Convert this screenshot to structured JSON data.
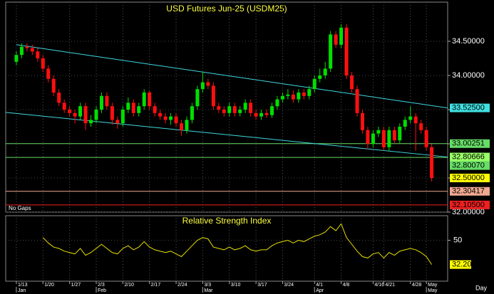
{
  "chart_data": {
    "type": "candlestick",
    "title": "USD Futures Jun-25 (USDM25)",
    "note": "No Gaps",
    "x_unit": "Day",
    "xlim": [
      -2,
      81
    ],
    "ylim": [
      32.0,
      35.0
    ],
    "yticks": [
      {
        "value": 32.0,
        "label": "32.00000"
      },
      {
        "value": 32.5,
        "label": "32.50000"
      },
      {
        "value": 33.0,
        "label": "33.00000"
      },
      {
        "value": 33.5,
        "label": "33.50000"
      },
      {
        "value": 34.0,
        "label": "34.00000"
      },
      {
        "value": 34.5,
        "label": "34.50000"
      }
    ],
    "xticks": [
      {
        "value": 0,
        "label": "1/13"
      },
      {
        "value": 5,
        "label": "1/20"
      },
      {
        "value": 10,
        "label": "1/27"
      },
      {
        "value": 15,
        "label": "2/3"
      },
      {
        "value": 20,
        "label": "2/10"
      },
      {
        "value": 25,
        "label": "2/17"
      },
      {
        "value": 30,
        "label": "2/24"
      },
      {
        "value": 35,
        "label": "3/3"
      },
      {
        "value": 40,
        "label": "3/10"
      },
      {
        "value": 45,
        "label": "3/17"
      },
      {
        "value": 50,
        "label": "3/24"
      },
      {
        "value": 56,
        "label": "4/1"
      },
      {
        "value": 61,
        "label": "4/8"
      },
      {
        "value": 67,
        "label": "4/16"
      },
      {
        "value": 69,
        "label": "4/21"
      },
      {
        "value": 74,
        "label": "4/28"
      },
      {
        "value": 77,
        "label": "May"
      }
    ],
    "months": [
      {
        "value": 0,
        "label": "Jan"
      },
      {
        "value": 15,
        "label": "Feb"
      },
      {
        "value": 35,
        "label": "Mar"
      },
      {
        "value": 56,
        "label": "Apr"
      },
      {
        "value": 77,
        "label": "May"
      }
    ],
    "grid": true,
    "up_color": "#00e000",
    "down_color": "#ff1010",
    "open": [
      34.2,
      34.3,
      34.42,
      34.4,
      34.35,
      34.25,
      34.1,
      33.95,
      33.75,
      33.6,
      33.5,
      33.45,
      33.4,
      33.55,
      33.3,
      33.35,
      33.5,
      33.7,
      33.55,
      33.35,
      33.3,
      33.5,
      33.6,
      33.45,
      33.55,
      33.75,
      33.55,
      33.45,
      33.4,
      33.35,
      33.4,
      33.3,
      33.2,
      33.35,
      33.55,
      33.8,
      33.9,
      33.85,
      33.55,
      33.5,
      33.45,
      33.55,
      33.45,
      33.5,
      33.6,
      33.45,
      33.4,
      33.45,
      33.42,
      33.55,
      33.65,
      33.7,
      33.72,
      33.65,
      33.75,
      33.7,
      33.8,
      33.95,
      34.0,
      34.1,
      34.6,
      34.45,
      34.7,
      34.0,
      33.8,
      33.45,
      33.2,
      33.0,
      33.15,
      33.2,
      32.95,
      33.2,
      33.05,
      33.25,
      33.35,
      33.4,
      33.3,
      33.2,
      32.95
    ],
    "high": [
      34.35,
      34.47,
      34.47,
      34.45,
      34.4,
      34.3,
      34.15,
      34.0,
      33.8,
      33.65,
      33.55,
      33.5,
      33.6,
      33.6,
      33.42,
      33.55,
      33.75,
      33.75,
      33.6,
      33.4,
      33.55,
      33.68,
      33.65,
      33.6,
      33.8,
      33.78,
      33.6,
      33.5,
      33.45,
      33.45,
      33.45,
      33.35,
      33.4,
      33.6,
      33.85,
      34.05,
      33.95,
      33.9,
      33.6,
      33.55,
      33.6,
      33.6,
      33.55,
      33.65,
      33.65,
      33.5,
      33.5,
      33.5,
      33.6,
      33.7,
      33.75,
      33.8,
      33.78,
      33.8,
      33.8,
      33.85,
      34.0,
      34.1,
      34.2,
      34.65,
      34.65,
      34.75,
      34.75,
      34.05,
      33.85,
      33.5,
      33.25,
      33.2,
      33.25,
      33.25,
      33.25,
      33.25,
      33.3,
      33.4,
      33.55,
      33.45,
      33.35,
      33.25,
      33.0
    ],
    "low": [
      34.15,
      34.25,
      34.35,
      34.3,
      34.2,
      34.05,
      33.9,
      33.7,
      33.55,
      33.45,
      33.4,
      33.3,
      33.35,
      33.2,
      33.25,
      33.3,
      33.45,
      33.5,
      33.28,
      33.22,
      33.25,
      33.45,
      33.4,
      33.4,
      33.5,
      33.5,
      33.4,
      33.35,
      33.3,
      33.28,
      33.25,
      33.12,
      33.15,
      33.3,
      33.5,
      33.75,
      33.8,
      33.5,
      33.45,
      33.4,
      33.4,
      33.4,
      33.4,
      33.45,
      33.4,
      33.35,
      33.35,
      33.38,
      33.38,
      33.5,
      33.6,
      33.65,
      33.6,
      33.6,
      33.65,
      33.65,
      33.75,
      33.9,
      33.95,
      34.05,
      34.4,
      34.4,
      33.95,
      33.75,
      33.4,
      33.15,
      32.92,
      32.95,
      33.1,
      32.9,
      32.9,
      33.0,
      33.0,
      33.2,
      33.3,
      32.9,
      33.15,
      32.9,
      32.45
    ],
    "close": [
      34.3,
      34.42,
      34.4,
      34.35,
      34.25,
      34.1,
      33.95,
      33.75,
      33.6,
      33.5,
      33.45,
      33.4,
      33.55,
      33.3,
      33.35,
      33.5,
      33.7,
      33.55,
      33.35,
      33.3,
      33.5,
      33.6,
      33.45,
      33.55,
      33.75,
      33.55,
      33.45,
      33.4,
      33.35,
      33.4,
      33.3,
      33.2,
      33.35,
      33.55,
      33.8,
      33.9,
      33.85,
      33.55,
      33.5,
      33.45,
      33.55,
      33.45,
      33.5,
      33.6,
      33.45,
      33.4,
      33.45,
      33.42,
      33.55,
      33.65,
      33.7,
      33.72,
      33.65,
      33.75,
      33.7,
      33.8,
      33.95,
      34.0,
      34.1,
      34.6,
      34.45,
      34.7,
      34.0,
      33.8,
      33.45,
      33.2,
      33.0,
      33.15,
      33.2,
      32.95,
      33.2,
      33.05,
      33.25,
      33.35,
      33.4,
      33.3,
      33.2,
      32.95,
      32.5
    ],
    "trendlines": [
      {
        "color": "#40d8e0",
        "x": [
          0,
          81
        ],
        "y": [
          34.45,
          33.525
        ]
      },
      {
        "color": "#40d8e0",
        "x": [
          -2,
          81
        ],
        "y": [
          33.46,
          32.80666
        ]
      }
    ],
    "levels": [
      {
        "value": 33.525,
        "label": "33.52500",
        "color": "#40e0e0",
        "line": false
      },
      {
        "value": 33.00251,
        "label": "33.00251",
        "color": "#66dd66",
        "line": true
      },
      {
        "value": 32.80666,
        "label": "32.80666",
        "color": "#99ff66",
        "line": false
      },
      {
        "value": 32.8007,
        "label": "32.80070",
        "color": "#66dd66",
        "line": true
      },
      {
        "value": 32.5,
        "label": "32.50000",
        "color": "#ffff00",
        "line": false
      },
      {
        "value": 32.30417,
        "label": "32.30417",
        "color": "#f0a890",
        "line": true
      },
      {
        "value": 32.105,
        "label": "32.10500",
        "color": "#ee2020",
        "line": true
      }
    ],
    "indicator": {
      "type": "line",
      "title": "Relative Strength Index",
      "color": "#e8e000",
      "ylim": [
        20,
        68
      ],
      "yticks": [
        50
      ],
      "values": [
        null,
        null,
        null,
        null,
        null,
        52,
        48,
        45,
        44,
        42,
        41,
        40,
        44,
        39,
        41,
        44,
        47,
        44,
        41,
        40,
        44,
        46,
        43,
        45,
        49,
        45,
        43,
        42,
        41,
        42,
        40,
        38,
        42,
        46,
        50,
        52,
        51,
        45,
        44,
        43,
        45,
        43,
        44,
        46,
        43,
        42,
        43,
        43,
        46,
        48,
        49,
        50,
        48,
        50,
        49,
        51,
        53,
        54,
        56,
        60,
        57,
        62,
        52,
        47,
        42,
        38,
        37,
        40,
        41,
        37,
        41,
        39,
        42,
        43,
        44,
        43,
        41,
        38,
        32.2
      ],
      "last": {
        "value": 32.2,
        "label": "32.20"
      }
    }
  }
}
